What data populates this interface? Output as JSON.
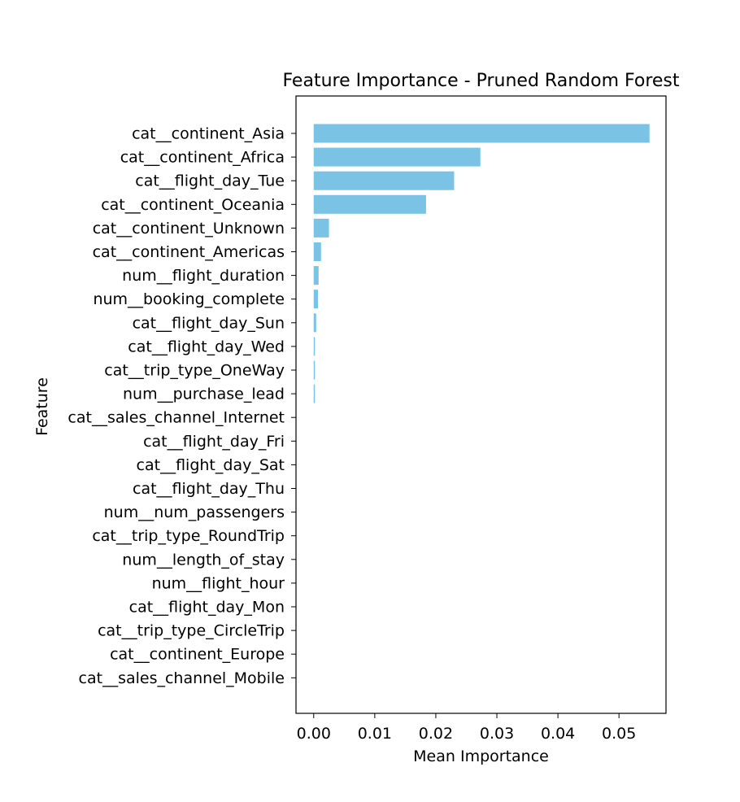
{
  "chart_data": {
    "type": "bar",
    "orientation": "horizontal",
    "title": "Feature Importance - Pruned Random Forest",
    "xlabel": "Mean Importance",
    "ylabel": "Feature",
    "bar_color": "#7AC3E5",
    "xlim": [
      -0.0029,
      0.0577
    ],
    "xticks": [
      0.0,
      0.01,
      0.02,
      0.03,
      0.04,
      0.05
    ],
    "xtick_labels": [
      "0.00",
      "0.01",
      "0.02",
      "0.03",
      "0.04",
      "0.05"
    ],
    "grid": false,
    "categories": [
      "cat__continent_Asia",
      "cat__continent_Africa",
      "cat__flight_day_Tue",
      "cat__continent_Oceania",
      "cat__continent_Unknown",
      "cat__continent_Americas",
      "num__flight_duration",
      "num__booking_complete",
      "cat__flight_day_Sun",
      "cat__flight_day_Wed",
      "cat__trip_type_OneWay",
      "num__purchase_lead",
      "cat__sales_channel_Internet",
      "cat__flight_day_Fri",
      "cat__flight_day_Sat",
      "cat__flight_day_Thu",
      "num__num_passengers",
      "cat__trip_type_RoundTrip",
      "num__length_of_stay",
      "num__flight_hour",
      "cat__flight_day_Mon",
      "cat__trip_type_CircleTrip",
      "cat__continent_Europe",
      "cat__sales_channel_Mobile"
    ],
    "values": [
      0.055,
      0.0273,
      0.023,
      0.0184,
      0.0025,
      0.0012,
      0.0008,
      0.0007,
      0.0004,
      0.0002,
      0.0002,
      0.0002,
      0,
      0,
      0,
      0,
      0,
      0,
      0,
      0,
      0,
      0,
      0,
      0
    ]
  }
}
